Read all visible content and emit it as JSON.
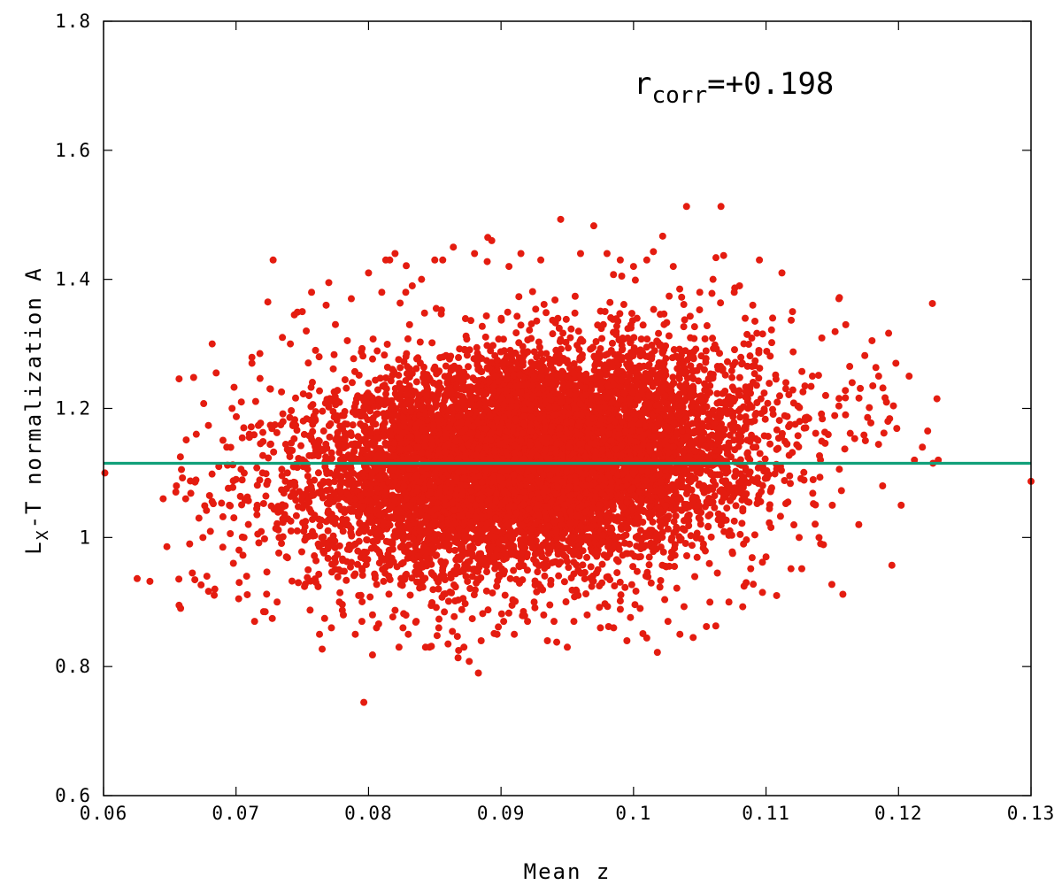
{
  "chart_data": {
    "type": "scatter",
    "xlabel": "Mean z",
    "ylabel": {
      "main": "L",
      "sub": "X",
      "rest": "-T normalization A"
    },
    "xlim": [
      0.06,
      0.13
    ],
    "ylim": [
      0.6,
      1.8
    ],
    "x_ticks": [
      0.06,
      0.07,
      0.08,
      0.09,
      0.1,
      0.11,
      0.12,
      0.13
    ],
    "x_tick_labels": [
      "0.06",
      "0.07",
      "0.08",
      "0.09",
      "0.1",
      "0.11",
      "0.12",
      "0.13"
    ],
    "y_ticks": [
      0.6,
      0.8,
      1.0,
      1.2,
      1.4,
      1.6,
      1.8
    ],
    "y_tick_labels": [
      "0.6",
      "0.8",
      "1",
      "1.2",
      "1.4",
      "1.6",
      "1.8"
    ],
    "annotation": {
      "main": "r",
      "sub": "corr",
      "rest": "=+0.198"
    },
    "reference_line": {
      "y": 1.115,
      "color": "#12a07a"
    },
    "point_color": "#e41c10",
    "grid": false,
    "series": [
      {
        "points": [
          [
            0.0601,
            1.1
          ],
          [
            0.0635,
            0.932
          ],
          [
            0.0645,
            1.06
          ],
          [
            0.0655,
            1.08
          ],
          [
            0.0657,
            0.895
          ],
          [
            0.0658,
            1.125
          ],
          [
            0.0662,
            1.06
          ],
          [
            0.0665,
            0.99
          ],
          [
            0.0667,
            0.945
          ],
          [
            0.0668,
            1.248
          ],
          [
            0.067,
            1.16
          ],
          [
            0.0672,
            1.03
          ],
          [
            0.0675,
            1.0
          ],
          [
            0.0678,
            0.94
          ],
          [
            0.068,
            1.065
          ],
          [
            0.0682,
            1.3
          ],
          [
            0.0684,
            0.92
          ],
          [
            0.0685,
            1.255
          ],
          [
            0.0687,
            1.11
          ],
          [
            0.069,
            0.985
          ],
          [
            0.0693,
            1.14
          ],
          [
            0.0695,
            1.05
          ],
          [
            0.0697,
            1.2
          ],
          [
            0.0698,
            0.96
          ],
          [
            0.07,
            1.09
          ],
          [
            0.0702,
            0.905
          ],
          [
            0.0704,
            1.21
          ],
          [
            0.0706,
            1.0
          ],
          [
            0.0708,
            0.94
          ],
          [
            0.071,
            1.16
          ],
          [
            0.0712,
            1.27
          ],
          [
            0.0714,
            0.87
          ],
          [
            0.0716,
            1.05
          ],
          [
            0.0718,
            1.285
          ],
          [
            0.072,
            1.1
          ],
          [
            0.0722,
            0.885
          ],
          [
            0.0724,
            1.365
          ],
          [
            0.0726,
            1.23
          ],
          [
            0.0728,
            1.43
          ],
          [
            0.0731,
            0.9
          ],
          [
            0.0735,
            1.31
          ],
          [
            0.0738,
            0.97
          ],
          [
            0.0741,
            1.3
          ],
          [
            0.0744,
            1.345
          ],
          [
            0.0747,
            0.93
          ],
          [
            0.075,
            1.35
          ],
          [
            0.0753,
            1.32
          ],
          [
            0.0757,
            1.38
          ],
          [
            0.076,
            1.29
          ],
          [
            0.0763,
            0.85
          ],
          [
            0.0765,
            0.827
          ],
          [
            0.0768,
            1.36
          ],
          [
            0.077,
            1.395
          ],
          [
            0.0772,
            0.86
          ],
          [
            0.0775,
            1.33
          ],
          [
            0.0778,
            0.9
          ],
          [
            0.0781,
            0.88
          ],
          [
            0.0784,
            1.305
          ],
          [
            0.0787,
            1.37
          ],
          [
            0.079,
            0.85
          ],
          [
            0.0795,
            0.87
          ],
          [
            0.08,
            1.41
          ],
          [
            0.0803,
            0.818
          ],
          [
            0.0806,
            0.86
          ],
          [
            0.081,
            1.38
          ],
          [
            0.0813,
            1.43
          ],
          [
            0.0816,
            1.43
          ],
          [
            0.082,
            1.44
          ],
          [
            0.0823,
            0.83
          ],
          [
            0.0826,
            0.86
          ],
          [
            0.083,
            0.85
          ],
          [
            0.0833,
            1.39
          ],
          [
            0.0836,
            0.87
          ],
          [
            0.084,
            1.4
          ],
          [
            0.0843,
            0.83
          ],
          [
            0.0846,
            0.83
          ],
          [
            0.085,
            1.43
          ],
          [
            0.0853,
            0.86
          ],
          [
            0.0856,
            1.43
          ],
          [
            0.086,
            0.835
          ],
          [
            0.0864,
            1.45
          ],
          [
            0.0868,
            0.825
          ],
          [
            0.0872,
            0.83
          ],
          [
            0.0876,
            0.808
          ],
          [
            0.088,
            1.44
          ],
          [
            0.0885,
            0.84
          ],
          [
            0.089,
            1.465
          ],
          [
            0.0893,
            1.46
          ],
          [
            0.0897,
            0.85
          ],
          [
            0.0902,
            0.87
          ],
          [
            0.0906,
            1.42
          ],
          [
            0.091,
            0.85
          ],
          [
            0.0915,
            1.44
          ],
          [
            0.092,
            0.87
          ],
          [
            0.0925,
            0.9
          ],
          [
            0.093,
            1.43
          ],
          [
            0.0935,
            0.84
          ],
          [
            0.094,
            0.87
          ],
          [
            0.0945,
            1.493
          ],
          [
            0.095,
            0.83
          ],
          [
            0.0955,
            0.87
          ],
          [
            0.096,
            1.44
          ],
          [
            0.0965,
            0.88
          ],
          [
            0.097,
            1.483
          ],
          [
            0.0975,
            0.86
          ],
          [
            0.098,
            1.44
          ],
          [
            0.0985,
            0.86
          ],
          [
            0.099,
            1.43
          ],
          [
            0.0995,
            0.84
          ],
          [
            0.1,
            1.42
          ],
          [
            0.1005,
            0.89
          ],
          [
            0.101,
            1.43
          ],
          [
            0.1015,
            1.443
          ],
          [
            0.1018,
            0.822
          ],
          [
            0.1022,
            1.467
          ],
          [
            0.1026,
            0.87
          ],
          [
            0.103,
            1.42
          ],
          [
            0.1035,
            0.85
          ],
          [
            0.104,
            1.513
          ],
          [
            0.1045,
            0.845
          ],
          [
            0.105,
            1.38
          ],
          [
            0.1055,
            0.862
          ],
          [
            0.106,
            1.4
          ],
          [
            0.1066,
            1.513
          ],
          [
            0.1068,
            1.437
          ],
          [
            0.1072,
            0.9
          ],
          [
            0.1076,
            1.38
          ],
          [
            0.108,
            1.39
          ],
          [
            0.1085,
            0.93
          ],
          [
            0.109,
            1.36
          ],
          [
            0.1095,
            1.43
          ],
          [
            0.11,
            0.97
          ],
          [
            0.1105,
            1.34
          ],
          [
            0.1108,
            0.91
          ],
          [
            0.1112,
            1.41
          ],
          [
            0.1115,
            1.24
          ],
          [
            0.112,
            1.35
          ],
          [
            0.1125,
            1.0
          ],
          [
            0.113,
            1.17
          ],
          [
            0.1135,
            1.25
          ],
          [
            0.114,
            1.0
          ],
          [
            0.1145,
            1.22
          ],
          [
            0.115,
            1.05
          ],
          [
            0.1155,
            1.37
          ],
          [
            0.1158,
            0.912
          ],
          [
            0.116,
            1.19
          ],
          [
            0.1165,
            1.24
          ],
          [
            0.117,
            1.02
          ],
          [
            0.1175,
            1.15
          ],
          [
            0.118,
            1.305
          ],
          [
            0.1185,
            1.25
          ],
          [
            0.1188,
            1.08
          ],
          [
            0.1192,
            1.18
          ],
          [
            0.1195,
            0.957
          ],
          [
            0.1198,
            1.27
          ],
          [
            0.1202,
            1.05
          ],
          [
            0.1208,
            1.25
          ],
          [
            0.1212,
            1.12
          ],
          [
            0.1218,
            1.14
          ],
          [
            0.1222,
            1.165
          ],
          [
            0.1226,
            1.115
          ],
          [
            0.1229,
            1.215
          ],
          [
            0.123,
            1.12
          ],
          [
            0.13,
            1.087
          ]
        ]
      },
      {
        "cloud": {
          "center_x": 0.0925,
          "center_y": 1.12,
          "sigma_x": 0.0083,
          "sigma_y": 0.085,
          "count": 9000,
          "corr": 0.198
        }
      }
    ]
  }
}
